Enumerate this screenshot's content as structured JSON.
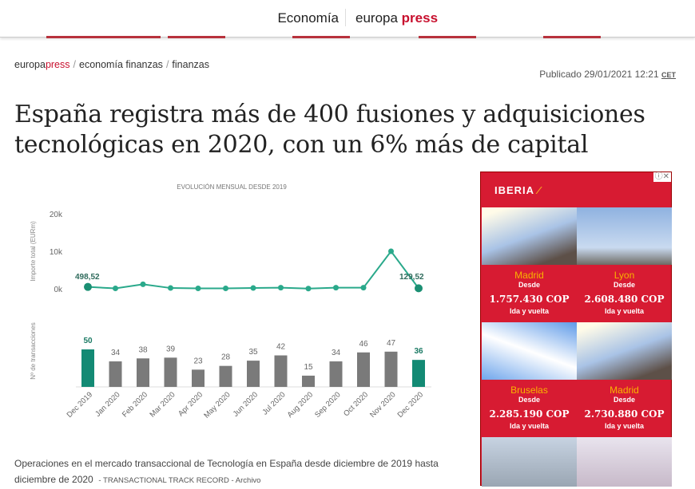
{
  "header": {
    "section": "Economía",
    "logo_main": "europa",
    "logo_accent": "press"
  },
  "breadcrumb": {
    "logo_main": "europa",
    "logo_accent": "press",
    "items": [
      "economía finanzas",
      "finanzas"
    ]
  },
  "published": {
    "label": "Publicado 29/01/2021 12:21",
    "tz": "CET"
  },
  "article": {
    "title": "España registra más de 400 fusiones y adquisiciones tecnológicas en 2020, con un 6% más de capital",
    "caption": "Operaciones en el mercado transaccional de Tecnología en España desde diciembre de 2019 hasta diciembre de 2020",
    "credit": "- TRANSACTIONAL TRACK RECORD - Archivo"
  },
  "chart_data": [
    {
      "type": "line",
      "title": "EVOLUCIÓN MENSUAL DESDE 2019",
      "ylabel": "Importe total (EURm)",
      "yticks": [
        "0k",
        "10k",
        "20k"
      ],
      "ylim": [
        0,
        20000
      ],
      "categories": [
        "Dec 2019",
        "Jan 2020",
        "Feb 2020",
        "Mar 2020",
        "Apr 2020",
        "May 2020",
        "Jun 2020",
        "Jul 2020",
        "Aug 2020",
        "Sep 2020",
        "Oct 2020",
        "Nov 2020",
        "Dec 2020"
      ],
      "values": [
        498.52,
        100,
        1200,
        200,
        100,
        100,
        200,
        300,
        50,
        300,
        300,
        10000,
        129.52
      ],
      "data_labels": {
        "first": "498,52",
        "last": "129,52"
      },
      "color": "#2aa98b"
    },
    {
      "type": "bar",
      "ylabel": "Nº de transacciones",
      "categories": [
        "Dec 2019",
        "Jan 2020",
        "Feb 2020",
        "Mar 2020",
        "Apr 2020",
        "May 2020",
        "Jun 2020",
        "Jul 2020",
        "Aug 2020",
        "Sep 2020",
        "Oct 2020",
        "Nov 2020",
        "Dec 2020"
      ],
      "values": [
        50,
        34,
        38,
        39,
        23,
        28,
        35,
        42,
        15,
        34,
        46,
        47,
        36
      ],
      "highlight_color": "#138a74",
      "color": "#7a7a7a"
    }
  ],
  "ad": {
    "brand": "IBERIA",
    "tiles": [
      {
        "city": "Madrid",
        "from": "Desde",
        "price": "1.757.430 COP",
        "trip": "Ida y vuelta"
      },
      {
        "city": "Lyon",
        "from": "Desde",
        "price": "2.608.480 COP",
        "trip": "Ida y vuelta"
      },
      {
        "city": "Bruselas",
        "from": "Desde",
        "price": "2.285.190 COP",
        "trip": "Ida y vuelta"
      },
      {
        "city": "Madrid",
        "from": "Desde",
        "price": "2.730.880 COP",
        "trip": "Ida y vuelta"
      }
    ]
  }
}
